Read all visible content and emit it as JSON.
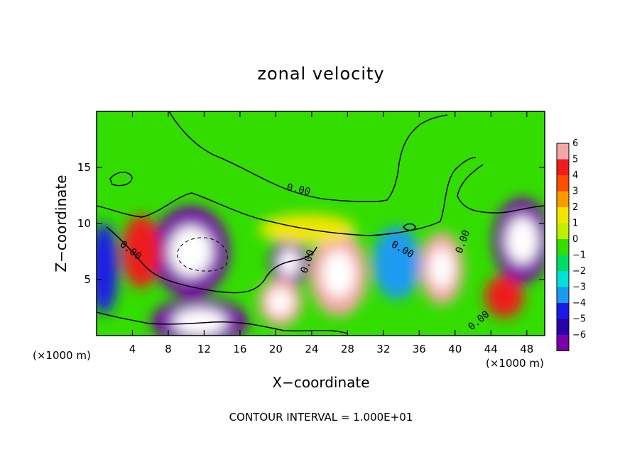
{
  "chart_data": {
    "type": "heatmap",
    "title": "zonal velocity",
    "xlabel": "X−coordinate",
    "ylabel": "Z−coordinate",
    "x_unit_left": "(×1000 m)",
    "x_unit_right": "(×1000 m)",
    "xlim": [
      0,
      50
    ],
    "ylim": [
      0,
      20
    ],
    "x_ticks": [
      4,
      8,
      12,
      16,
      20,
      24,
      28,
      32,
      36,
      40,
      44,
      48
    ],
    "x_tick_labels": [
      "4",
      "8",
      "12",
      "16",
      "20",
      "24",
      "28",
      "32",
      "36",
      "40",
      "44",
      "48"
    ],
    "y_ticks": [
      5,
      10,
      15
    ],
    "y_tick_labels": [
      "5",
      "10",
      "15"
    ],
    "colorbar": {
      "levels": [
        6,
        5,
        4,
        3,
        2,
        1,
        0,
        -1,
        -2,
        -3,
        -4,
        -5,
        -6
      ],
      "labels": [
        "6",
        "5",
        "4",
        "3",
        "2",
        "1",
        "0",
        "−1",
        "−2",
        "−3",
        "−4",
        "−5",
        "−6"
      ],
      "colors": [
        "#f4a7a7",
        "#ee1c1c",
        "#ff4d00",
        "#ff9900",
        "#f2e600",
        "#bfef00",
        "#33dd00",
        "#00dd66",
        "#00e2d8",
        "#1a9bf0",
        "#1a1ae6",
        "#2a00aa",
        "#7a00aa"
      ]
    },
    "background_value": 0,
    "contour_labels": [
      "0.00",
      "0.00",
      "0.00",
      "0.00",
      "0.00",
      "0.00"
    ],
    "contour_interval_text": "CONTOUR INTERVAL = 1.000E+01",
    "features": [
      {
        "kind": "blob",
        "x": 10.5,
        "z": 7.5,
        "rx": 3.2,
        "rz": 3.0,
        "value": -6
      },
      {
        "kind": "blob",
        "x": 11.5,
        "z": 1.2,
        "rx": 4.0,
        "rz": 1.6,
        "value": -6
      },
      {
        "kind": "blob",
        "x": 21.5,
        "z": 6.5,
        "rx": 1.6,
        "rz": 1.6,
        "value": -6
      },
      {
        "kind": "blob",
        "x": 20.5,
        "z": 3.0,
        "rx": 1.8,
        "rz": 1.6,
        "value": 6
      },
      {
        "kind": "blob",
        "x": 27.0,
        "z": 5.5,
        "rx": 2.4,
        "rz": 2.8,
        "value": 6
      },
      {
        "kind": "blob",
        "x": 38.5,
        "z": 6.0,
        "rx": 1.8,
        "rz": 2.4,
        "value": 6
      },
      {
        "kind": "blob",
        "x": 47.5,
        "z": 8.5,
        "rx": 2.4,
        "rz": 2.8,
        "value": -6
      },
      {
        "kind": "blob",
        "x": 45.5,
        "z": 3.5,
        "rx": 1.6,
        "rz": 1.4,
        "value": 5
      },
      {
        "kind": "blob",
        "x": 33.5,
        "z": 6.5,
        "rx": 2.0,
        "rz": 2.4,
        "value": -3
      },
      {
        "kind": "blob",
        "x": 5.0,
        "z": 7.5,
        "rx": 1.6,
        "rz": 2.4,
        "value": 5
      },
      {
        "kind": "blob",
        "x": 23.5,
        "z": 9.5,
        "rx": 4.0,
        "rz": 1.0,
        "value": 2
      },
      {
        "kind": "blob",
        "x": 0.8,
        "z": 6.0,
        "rx": 1.2,
        "rz": 3.0,
        "value": -4
      }
    ]
  }
}
